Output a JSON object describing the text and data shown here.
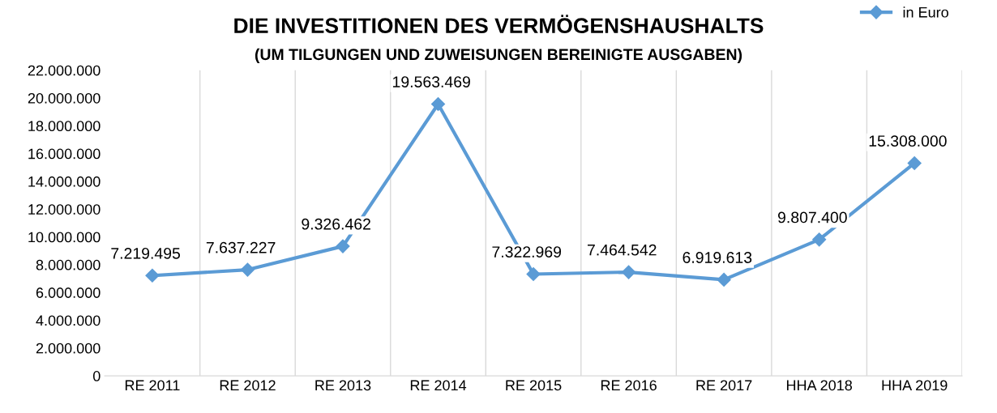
{
  "chart_data": {
    "type": "line",
    "title": "DIE INVESTITIONEN DES VERMÖGENSHAUSHALTS",
    "subtitle": "(UM TILGUNGEN UND ZUWEISUNGEN BEREINIGTE AUSGABEN)",
    "categories": [
      "RE 2011",
      "RE 2012",
      "RE 2013",
      "RE 2014",
      "RE 2015",
      "RE 2016",
      "RE 2017",
      "HHA 2018",
      "HHA 2019"
    ],
    "series": [
      {
        "name": "in Euro",
        "color": "#5b9bd5",
        "values": [
          7219495,
          7637227,
          9326462,
          19563469,
          7322969,
          7464542,
          6919613,
          9807400,
          15308000
        ]
      }
    ],
    "ylim": [
      0,
      22000000
    ],
    "yticks": [
      {
        "value": 0,
        "label": "0"
      },
      {
        "value": 2000000,
        "label": "2.000.000"
      },
      {
        "value": 4000000,
        "label": "4.000.000"
      },
      {
        "value": 6000000,
        "label": "6.000.000"
      },
      {
        "value": 8000000,
        "label": "8.000.000"
      },
      {
        "value": 10000000,
        "label": "10.000.000"
      },
      {
        "value": 12000000,
        "label": "12.000.000"
      },
      {
        "value": 14000000,
        "label": "14.000.000"
      },
      {
        "value": 16000000,
        "label": "16.000.000"
      },
      {
        "value": 18000000,
        "label": "18.000.000"
      },
      {
        "value": 20000000,
        "label": "20.000.000"
      },
      {
        "value": 22000000,
        "label": "22.000.000"
      }
    ],
    "value_labels": [
      "7.219.495",
      "7.637.227",
      "9.326.462",
      "19.563.469",
      "7.322.969",
      "7.464.542",
      "6.919.613",
      "9.807.400",
      "15.308.000"
    ],
    "grid": "x",
    "legend": "top right",
    "marker": "diamond",
    "line_style": "solid"
  }
}
